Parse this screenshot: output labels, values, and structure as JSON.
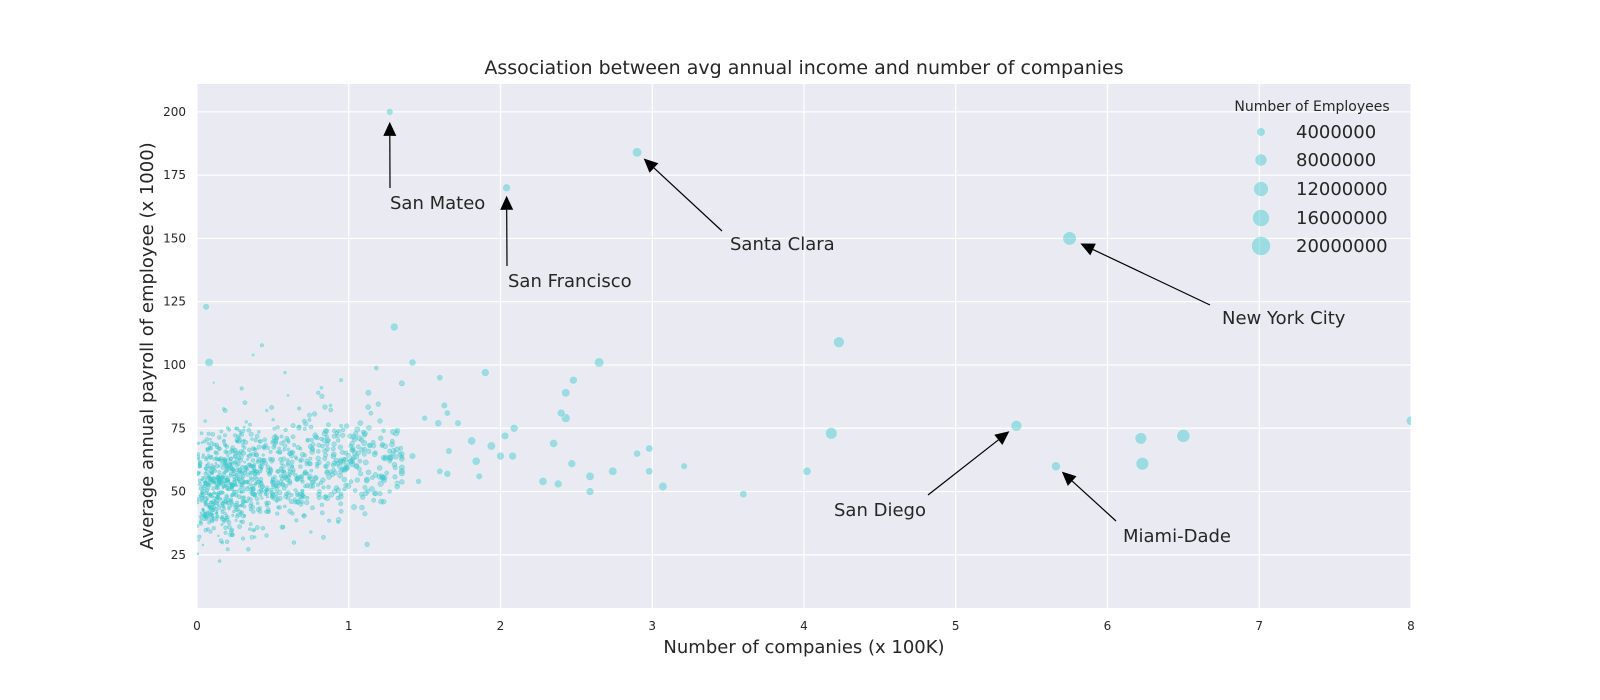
{
  "chart_data": {
    "type": "scatter",
    "title": "Association between avg annual income and number of companies",
    "xlabel": "Number of companies (x 100K)",
    "ylabel": "Average annual payroll of employee (x 1000)",
    "xlim": [
      0,
      8
    ],
    "ylim": [
      4,
      211
    ],
    "xticks": [
      0,
      1,
      2,
      3,
      4,
      5,
      6,
      7,
      8
    ],
    "yticks": [
      25,
      50,
      75,
      100,
      125,
      150,
      175,
      200
    ],
    "grid": true,
    "background": "#eaeaf2",
    "point_color": "#3ec9cc",
    "legend": {
      "title": "Number of Employees",
      "placement": "top-right",
      "entries": [
        {
          "label": "4000000",
          "size": 4000000
        },
        {
          "label": "8000000",
          "size": 8000000
        },
        {
          "label": "12000000",
          "size": 12000000
        },
        {
          "label": "16000000",
          "size": 16000000
        },
        {
          "label": "20000000",
          "size": 20000000
        }
      ]
    },
    "points": [
      {
        "x": 1.27,
        "y": 200,
        "size": 2500000
      },
      {
        "x": 2.04,
        "y": 170,
        "size": 3500000
      },
      {
        "x": 2.9,
        "y": 184,
        "size": 5000000
      },
      {
        "x": 5.75,
        "y": 150,
        "size": 10000000
      },
      {
        "x": 5.4,
        "y": 76,
        "size": 6500000
      },
      {
        "x": 5.66,
        "y": 60,
        "size": 4500000
      },
      {
        "x": 4.23,
        "y": 109,
        "size": 6500000
      },
      {
        "x": 4.18,
        "y": 73,
        "size": 7500000
      },
      {
        "x": 4.02,
        "y": 58,
        "size": 3800000
      },
      {
        "x": 6.22,
        "y": 71,
        "size": 7500000
      },
      {
        "x": 6.23,
        "y": 61,
        "size": 9000000
      },
      {
        "x": 6.5,
        "y": 72,
        "size": 9500000
      },
      {
        "x": 8.0,
        "y": 78,
        "size": 5000000
      },
      {
        "x": 3.6,
        "y": 49,
        "size": 3000000
      },
      {
        "x": 3.21,
        "y": 60,
        "size": 2500000
      },
      {
        "x": 3.07,
        "y": 52,
        "size": 4000000
      },
      {
        "x": 2.98,
        "y": 67,
        "size": 3000000
      },
      {
        "x": 2.98,
        "y": 58,
        "size": 3000000
      },
      {
        "x": 2.9,
        "y": 65,
        "size": 2800000
      },
      {
        "x": 2.74,
        "y": 58,
        "size": 4000000
      },
      {
        "x": 2.65,
        "y": 101,
        "size": 5000000
      },
      {
        "x": 2.59,
        "y": 56,
        "size": 4000000
      },
      {
        "x": 2.59,
        "y": 50,
        "size": 3500000
      },
      {
        "x": 2.48,
        "y": 94,
        "size": 3500000
      },
      {
        "x": 2.47,
        "y": 61,
        "size": 3500000
      },
      {
        "x": 2.43,
        "y": 89,
        "size": 4000000
      },
      {
        "x": 2.43,
        "y": 79,
        "size": 4500000
      },
      {
        "x": 2.4,
        "y": 81,
        "size": 3500000
      },
      {
        "x": 2.38,
        "y": 53,
        "size": 3500000
      },
      {
        "x": 2.35,
        "y": 69,
        "size": 3800000
      },
      {
        "x": 2.28,
        "y": 54,
        "size": 3800000
      },
      {
        "x": 2.09,
        "y": 75,
        "size": 3500000
      },
      {
        "x": 2.08,
        "y": 64,
        "size": 3500000
      },
      {
        "x": 2.03,
        "y": 72,
        "size": 3200000
      },
      {
        "x": 2.0,
        "y": 64,
        "size": 3500000
      },
      {
        "x": 1.94,
        "y": 68,
        "size": 4000000
      },
      {
        "x": 1.9,
        "y": 97,
        "size": 3500000
      },
      {
        "x": 1.86,
        "y": 56,
        "size": 2500000
      },
      {
        "x": 1.84,
        "y": 62,
        "size": 3800000
      },
      {
        "x": 1.81,
        "y": 70,
        "size": 3800000
      },
      {
        "x": 1.72,
        "y": 77,
        "size": 2500000
      },
      {
        "x": 1.65,
        "y": 81,
        "size": 2300000
      },
      {
        "x": 1.66,
        "y": 66,
        "size": 2500000
      },
      {
        "x": 1.65,
        "y": 57,
        "size": 2800000
      },
      {
        "x": 1.63,
        "y": 84,
        "size": 2500000
      },
      {
        "x": 1.6,
        "y": 95,
        "size": 2300000
      },
      {
        "x": 1.59,
        "y": 77,
        "size": 2800000
      },
      {
        "x": 1.6,
        "y": 58,
        "size": 2300000
      },
      {
        "x": 1.5,
        "y": 79,
        "size": 2000000
      },
      {
        "x": 1.46,
        "y": 54,
        "size": 2000000
      },
      {
        "x": 1.42,
        "y": 101,
        "size": 2800000
      },
      {
        "x": 1.42,
        "y": 64,
        "size": 2500000
      },
      {
        "x": 1.32,
        "y": 74,
        "size": 2300000
      },
      {
        "x": 1.32,
        "y": 52,
        "size": 2300000
      },
      {
        "x": 1.3,
        "y": 115,
        "size": 3500000
      },
      {
        "x": 1.27,
        "y": 50,
        "size": 1500000
      },
      {
        "x": 1.27,
        "y": 66,
        "size": 2000000
      },
      {
        "x": 1.23,
        "y": 74,
        "size": 1500000
      },
      {
        "x": 0.93,
        "y": 38,
        "size": 1200000
      },
      {
        "x": 0.95,
        "y": 94,
        "size": 1200000
      },
      {
        "x": 0.95,
        "y": 76,
        "size": 1200000
      },
      {
        "x": 0.75,
        "y": 34,
        "size": 1000000
      },
      {
        "x": 0.82,
        "y": 91,
        "size": 1000000
      },
      {
        "x": 0.88,
        "y": 84,
        "size": 1000000
      },
      {
        "x": 0.58,
        "y": 97,
        "size": 900000
      },
      {
        "x": 0.37,
        "y": 104,
        "size": 700000
      },
      {
        "x": 0.6,
        "y": 88,
        "size": 700000
      },
      {
        "x": 0.46,
        "y": 82,
        "size": 900000
      },
      {
        "x": 0.08,
        "y": 101,
        "size": 4000000
      },
      {
        "x": 0.06,
        "y": 123,
        "size": 2500000
      },
      {
        "x": 0.38,
        "y": 32,
        "size": 900000
      },
      {
        "x": 0.11,
        "y": 93,
        "size": 500000
      }
    ],
    "annotations": [
      {
        "text": "San Mateo",
        "x": 1.27,
        "y": 200
      },
      {
        "text": "San Francisco",
        "x": 2.04,
        "y": 170
      },
      {
        "text": "Santa Clara",
        "x": 2.9,
        "y": 184
      },
      {
        "text": "New York City",
        "x": 5.75,
        "y": 150
      },
      {
        "text": "San Diego",
        "x": 5.4,
        "y": 76
      },
      {
        "text": "Miami-Dade",
        "x": 5.66,
        "y": 60
      }
    ]
  }
}
